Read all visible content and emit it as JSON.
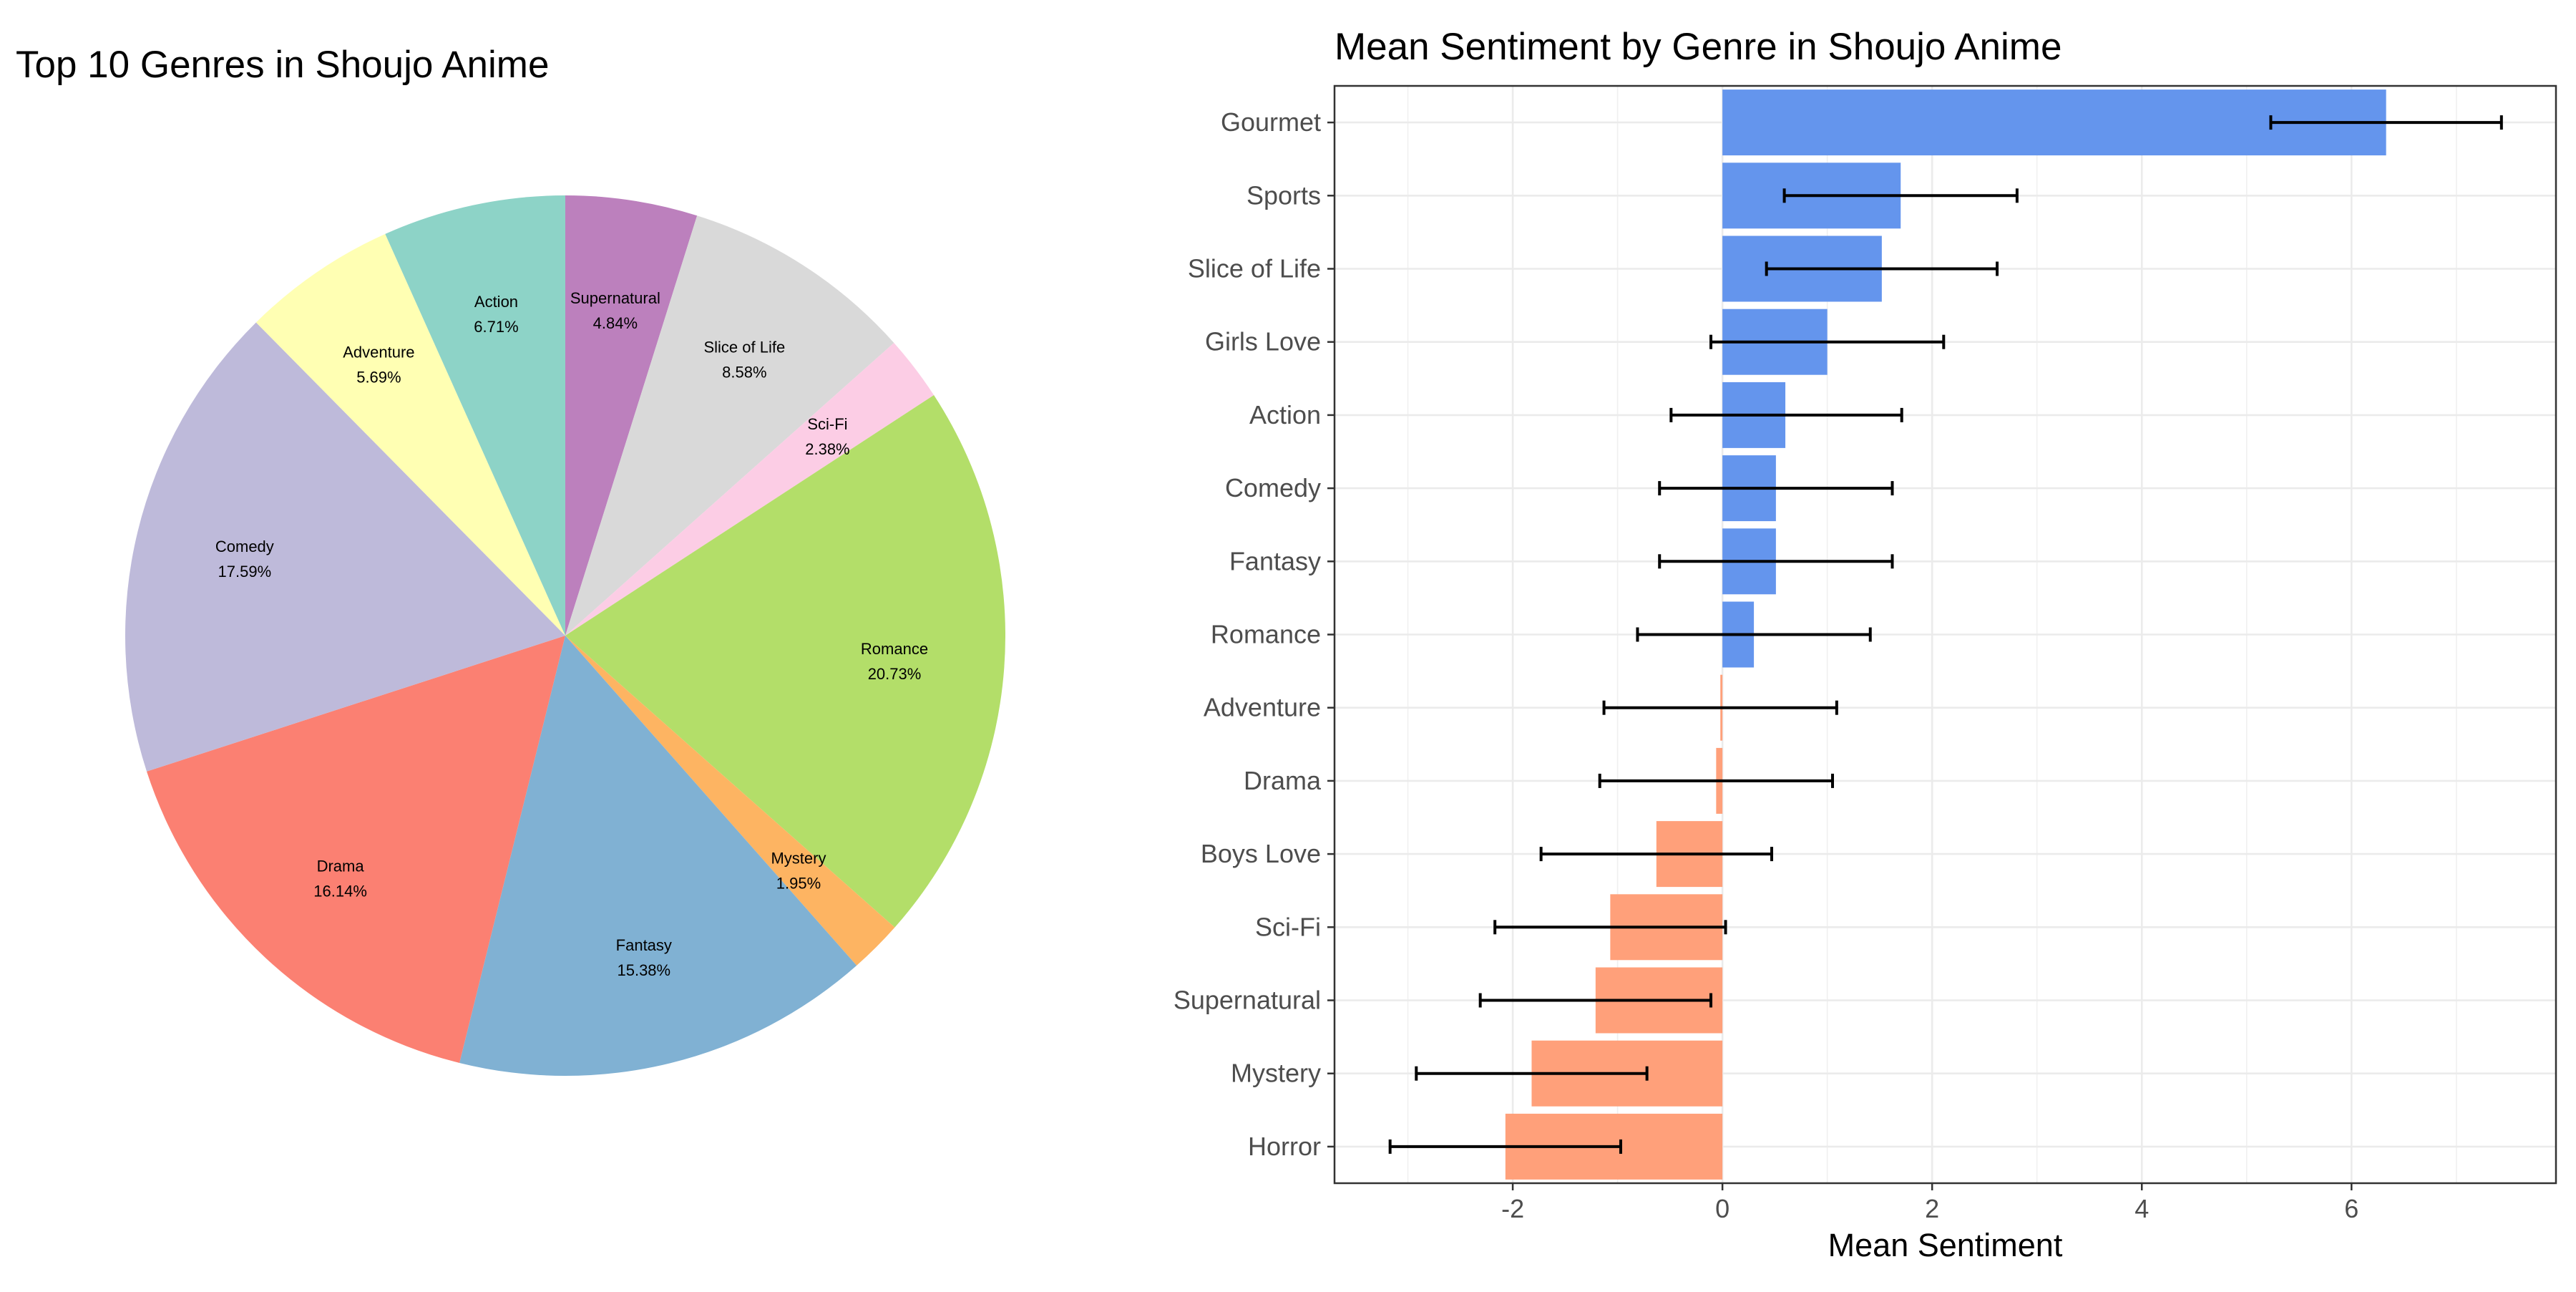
{
  "chart_data": [
    {
      "type": "pie",
      "title": "Top 10 Genres in Shoujo Anime",
      "slices": [
        {
          "label": "Supernatural",
          "percent_label": "4.84%",
          "value": 4.84,
          "color": "#BC80BD"
        },
        {
          "label": "Slice of Life",
          "percent_label": "8.58%",
          "value": 8.58,
          "color": "#D9D9D9"
        },
        {
          "label": "Sci-Fi",
          "percent_label": "2.38%",
          "value": 2.38,
          "color": "#FCCDE5"
        },
        {
          "label": "Romance",
          "percent_label": "20.73%",
          "value": 20.73,
          "color": "#B3DE69"
        },
        {
          "label": "Mystery",
          "percent_label": "1.95%",
          "value": 1.95,
          "color": "#FDB462"
        },
        {
          "label": "Fantasy",
          "percent_label": "15.38%",
          "value": 15.38,
          "color": "#80B1D3"
        },
        {
          "label": "Drama",
          "percent_label": "16.14%",
          "value": 16.14,
          "color": "#FB8072"
        },
        {
          "label": "Comedy",
          "percent_label": "17.59%",
          "value": 17.59,
          "color": "#BEBADA"
        },
        {
          "label": "Adventure",
          "percent_label": "5.69%",
          "value": 5.69,
          "color": "#FFFFB3"
        },
        {
          "label": "Action",
          "percent_label": "6.71%",
          "value": 6.71,
          "color": "#8DD3C7"
        }
      ]
    },
    {
      "type": "bar",
      "orientation": "horizontal",
      "title": "Mean Sentiment by Genre in Shoujo Anime",
      "xlabel": "Mean Sentiment",
      "ylabel": "",
      "xlim": [
        -3.7,
        7.95
      ],
      "x_ticks": [
        -2,
        0,
        2,
        4,
        6
      ],
      "x_tick_labels": [
        "-2",
        "0",
        "2",
        "4",
        "6"
      ],
      "grid": true,
      "positive_color": "#6495ED",
      "negative_color": "#FFA07A",
      "categories": [
        "Gourmet",
        "Sports",
        "Slice of Life",
        "Girls Love",
        "Action",
        "Comedy",
        "Fantasy",
        "Romance",
        "Adventure",
        "Drama",
        "Boys Love",
        "Sci-Fi",
        "Supernatural",
        "Mystery",
        "Horror"
      ],
      "values": [
        6.33,
        1.7,
        1.52,
        1.0,
        0.6,
        0.51,
        0.51,
        0.3,
        -0.02,
        -0.06,
        -0.63,
        -1.07,
        -1.21,
        -1.82,
        -2.07
      ],
      "error_low": [
        5.23,
        0.59,
        0.42,
        -0.11,
        -0.49,
        -0.6,
        -0.6,
        -0.81,
        -1.13,
        -1.17,
        -1.73,
        -2.17,
        -2.31,
        -2.92,
        -3.17
      ],
      "error_high": [
        7.43,
        2.81,
        2.62,
        2.11,
        1.71,
        1.62,
        1.62,
        1.41,
        1.09,
        1.05,
        0.47,
        0.03,
        -0.11,
        -0.72,
        -0.97
      ]
    }
  ]
}
